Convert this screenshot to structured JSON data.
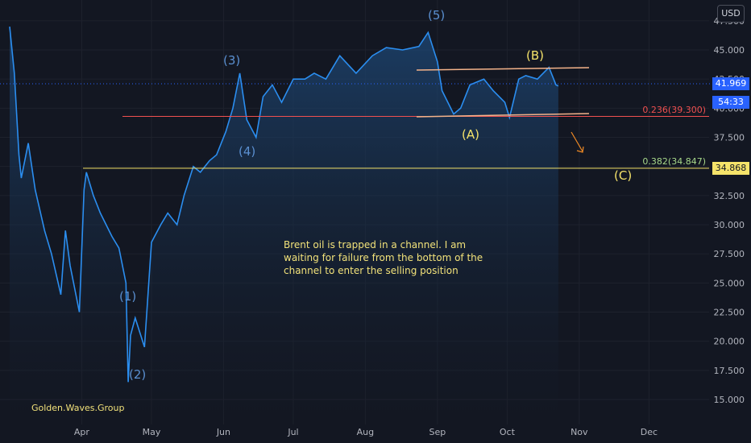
{
  "chart_data": {
    "type": "line",
    "title": "",
    "xlabel": "",
    "ylabel": "",
    "currency": "USD",
    "ylim": [
      13.5,
      47.5
    ],
    "y_ticks": [
      "15.000",
      "17.500",
      "20.000",
      "22.500",
      "25.000",
      "27.500",
      "30.000",
      "32.500",
      "35.000",
      "37.500",
      "40.000",
      "42.500",
      "45.000",
      "47.500"
    ],
    "x_ticks": [
      "Apr",
      "May",
      "Jun",
      "Jul",
      "Aug",
      "Sep",
      "Oct",
      "Nov",
      "Dec"
    ],
    "series": [
      {
        "x": [
          "2020-03-01",
          "2020-03-03",
          "2020-03-05",
          "2020-03-06",
          "2020-03-09",
          "2020-03-12",
          "2020-03-16",
          "2020-03-19",
          "2020-03-23",
          "2020-03-25",
          "2020-03-27",
          "2020-03-31",
          "2020-04-02",
          "2020-04-03",
          "2020-04-06",
          "2020-04-09",
          "2020-04-14",
          "2020-04-17",
          "2020-04-20",
          "2020-04-21",
          "2020-04-22",
          "2020-04-24",
          "2020-04-28",
          "2020-05-01",
          "2020-05-05",
          "2020-05-08",
          "2020-05-12",
          "2020-05-15",
          "2020-05-19",
          "2020-05-22",
          "2020-05-26",
          "2020-05-29",
          "2020-06-02",
          "2020-06-05",
          "2020-06-08",
          "2020-06-11",
          "2020-06-15",
          "2020-06-18",
          "2020-06-22",
          "2020-06-26",
          "2020-07-01",
          "2020-07-06",
          "2020-07-10",
          "2020-07-15",
          "2020-07-21",
          "2020-07-28",
          "2020-08-04",
          "2020-08-10",
          "2020-08-17",
          "2020-08-24",
          "2020-08-28",
          "2020-09-01",
          "2020-09-03",
          "2020-09-08",
          "2020-09-11",
          "2020-09-15",
          "2020-09-21",
          "2020-09-25",
          "2020-09-30",
          "2020-10-02",
          "2020-10-06",
          "2020-10-09",
          "2020-10-14",
          "2020-10-19",
          "2020-10-22",
          "2020-10-23"
        ],
        "values": [
          47.0,
          43.0,
          36.0,
          34.0,
          37.0,
          33.0,
          29.5,
          27.5,
          24.0,
          29.5,
          26.5,
          22.5,
          33.0,
          34.5,
          32.5,
          31.0,
          29.0,
          28.0,
          25.0,
          16.5,
          20.5,
          22.0,
          19.5,
          28.5,
          30.0,
          31.0,
          30.0,
          32.5,
          35.0,
          34.5,
          35.5,
          36.0,
          38.0,
          40.0,
          43.0,
          39.0,
          37.5,
          41.0,
          42.0,
          40.5,
          42.5,
          42.5,
          43.0,
          42.5,
          44.5,
          43.0,
          44.5,
          45.2,
          45.0,
          45.3,
          46.5,
          44.0,
          41.5,
          39.5,
          40.0,
          42.0,
          42.5,
          41.5,
          40.5,
          39.2,
          42.5,
          42.8,
          42.5,
          43.5,
          42.0,
          41.9
        ]
      }
    ],
    "wave_labels": [
      "(1)",
      "(2)",
      "(3)",
      "(4)",
      "(5)",
      "(A)",
      "(B)",
      "(C)"
    ],
    "fib_levels": [
      {
        "label": "0.236(39.300)",
        "value": 39.3,
        "color": "#f05050"
      },
      {
        "label": "0.382(34.847)",
        "value": 34.847,
        "color": "#f5e36a"
      }
    ],
    "annotation_lines": [
      "Brent oil is trapped in a channel. I am",
      "waiting for failure from the bottom of the",
      "channel to enter the selling position"
    ],
    "last_price": "41.969",
    "countdown": "54:33",
    "level_tag": "34.868",
    "author": "Golden.Waves.Group",
    "colors": {
      "background": "#131722",
      "line": "#2b8ef0",
      "fill": "#1c3a60",
      "fib236": "#f05050",
      "fib382": "#f5e36a",
      "channel": "#f4b38a"
    }
  }
}
